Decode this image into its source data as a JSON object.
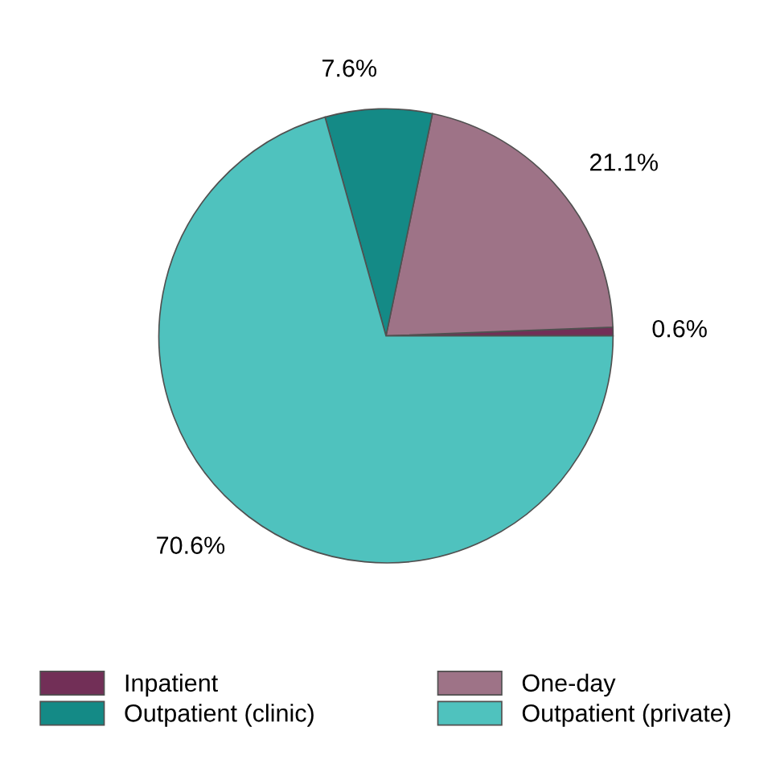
{
  "chart_data": {
    "type": "pie",
    "categories": [
      "Inpatient",
      "One-day",
      "Outpatient (clinic)",
      "Outpatient (private)"
    ],
    "values": [
      0.6,
      21.1,
      7.6,
      70.6
    ],
    "value_labels": [
      "0.6%",
      "21.1%",
      "7.6%",
      "70.6%"
    ],
    "colors": [
      "#722f57",
      "#9e7387",
      "#148a86",
      "#4fc2be"
    ],
    "legend": "bottom"
  }
}
